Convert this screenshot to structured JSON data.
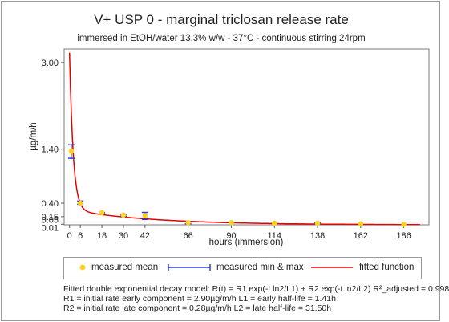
{
  "chart_data": {
    "type": "scatter",
    "title": "V+ USP 0 - marginal triclosan release rate",
    "subtitle": "immersed in EtOH/water 13.3% w/w - 37°C - continuous stirring 24rpm",
    "xlabel": "hours (immersion)",
    "ylabel": "µg/m/h",
    "x_ticks": [
      0,
      6,
      18,
      30,
      42,
      66,
      90,
      114,
      138,
      162,
      186
    ],
    "y_ticks": [
      0.01,
      0.05,
      0.15,
      0.4,
      1.4,
      3.0
    ],
    "y_tick_labels": [
      "0.01",
      "0.05",
      "0.15",
      "0.40",
      "1.40",
      "3.00"
    ],
    "xlim": [
      -3,
      200
    ],
    "ylim": [
      0,
      3.25
    ],
    "grid": false,
    "legend_position": "bottom",
    "series": [
      {
        "name": "measured mean",
        "color": "#ffd21f",
        "x": [
          1,
          6,
          18,
          30,
          42,
          66,
          90,
          114,
          138,
          162,
          186
        ],
        "y": [
          1.36,
          0.4,
          0.22,
          0.18,
          0.17,
          0.04,
          0.04,
          0.03,
          0.03,
          0.02,
          0.01
        ]
      },
      {
        "name": "measured min & max",
        "color": "#2b3fd6",
        "x": [
          1,
          6,
          18,
          30,
          42,
          66,
          138
        ],
        "min": [
          1.23,
          0.38,
          0.21,
          0.16,
          0.1,
          0.02,
          0.02
        ],
        "max": [
          1.48,
          0.44,
          0.23,
          0.19,
          0.23,
          0.06,
          0.04
        ]
      },
      {
        "name": "fitted function",
        "color": "#e60000",
        "model": "double_exponential",
        "R1": 2.9,
        "L1": 1.41,
        "R2": 0.28,
        "L2": 31.5
      }
    ]
  },
  "notes": [
    "Fitted double exponential decay model: R(t) = R1.exp(-t.ln2/L1) + R2.exp(-t.ln2/L2) R²_adjusted = 0.998",
    "R1 = initial rate early component = 2.90µg/m/h  L1 = early half-life = 1.41h",
    "R2 = initial rate late component = 0.28µg/m/h  L2 = late half-life = 31.50h"
  ]
}
